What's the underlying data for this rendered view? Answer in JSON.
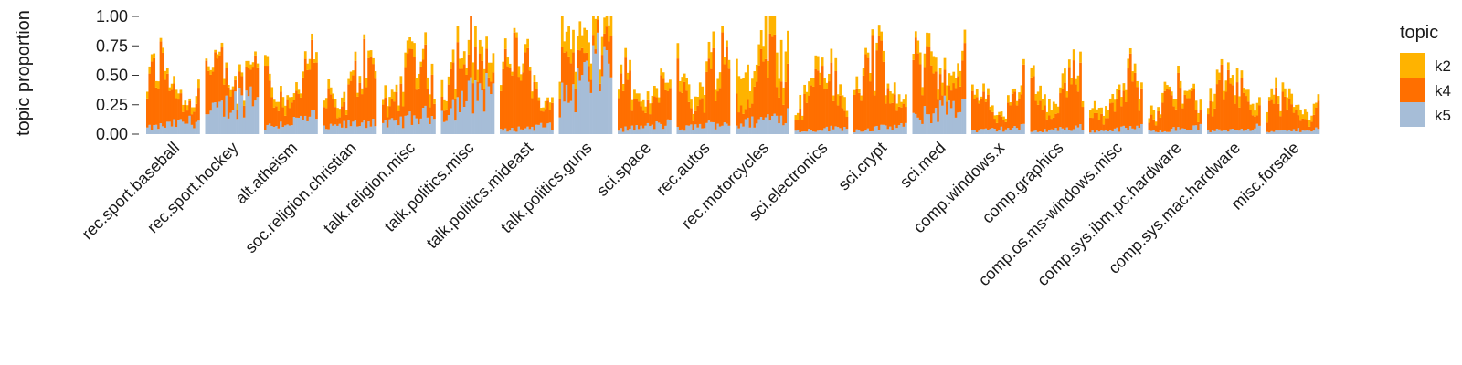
{
  "chart_data": {
    "type": "area",
    "description_kind": "stacked topic proportions per document, grouped by newsgroup",
    "ylabel": "topic proportion",
    "xlabel": "",
    "ylim": [
      0,
      1
    ],
    "yticks": [
      "0.00",
      "0.25",
      "0.50",
      "0.75",
      "1.00"
    ],
    "grid": false,
    "legend": {
      "title": "topic",
      "placement": "right",
      "entries": [
        {
          "name": "k2",
          "color": "#FFB300"
        },
        {
          "name": "k4",
          "color": "#FF6F00"
        },
        {
          "name": "k5",
          "color": "#A6BDD7"
        }
      ]
    },
    "series_order_bottom_to_top": [
      "k5",
      "k4",
      "k2"
    ],
    "groups": [
      {
        "name": "rec.sport.baseball",
        "k5": 0.08,
        "k4": 0.42,
        "k2": 0.05
      },
      {
        "name": "rec.sport.hockey",
        "k5": 0.25,
        "k4": 0.33,
        "k2": 0.04
      },
      {
        "name": "alt.atheism",
        "k5": 0.1,
        "k4": 0.45,
        "k2": 0.06
      },
      {
        "name": "soc.religion.christian",
        "k5": 0.08,
        "k4": 0.4,
        "k2": 0.06
      },
      {
        "name": "talk.religion.misc",
        "k5": 0.12,
        "k4": 0.42,
        "k2": 0.08
      },
      {
        "name": "talk.politics.misc",
        "k5": 0.3,
        "k4": 0.35,
        "k2": 0.12
      },
      {
        "name": "talk.politics.mideast",
        "k5": 0.05,
        "k4": 0.52,
        "k2": 0.06
      },
      {
        "name": "talk.politics.guns",
        "k5": 0.45,
        "k4": 0.25,
        "k2": 0.18
      },
      {
        "name": "sci.space",
        "k5": 0.06,
        "k4": 0.4,
        "k2": 0.06
      },
      {
        "name": "rec.autos",
        "k5": 0.07,
        "k4": 0.48,
        "k2": 0.1
      },
      {
        "name": "rec.motorcycles",
        "k5": 0.12,
        "k4": 0.45,
        "k2": 0.28
      },
      {
        "name": "sci.electronics",
        "k5": 0.04,
        "k4": 0.42,
        "k2": 0.08
      },
      {
        "name": "sci.crypt",
        "k5": 0.05,
        "k4": 0.48,
        "k2": 0.07
      },
      {
        "name": "sci.med",
        "k5": 0.2,
        "k4": 0.42,
        "k2": 0.1
      },
      {
        "name": "comp.windows.x",
        "k5": 0.04,
        "k4": 0.3,
        "k2": 0.05
      },
      {
        "name": "comp.graphics",
        "k5": 0.04,
        "k4": 0.35,
        "k2": 0.09
      },
      {
        "name": "comp.os.ms-windows.misc",
        "k5": 0.04,
        "k4": 0.35,
        "k2": 0.07
      },
      {
        "name": "comp.sys.ibm.pc.hardware",
        "k5": 0.04,
        "k4": 0.32,
        "k2": 0.06
      },
      {
        "name": "comp.sys.mac.hardware",
        "k5": 0.04,
        "k4": 0.36,
        "k2": 0.08
      },
      {
        "name": "misc.forsale",
        "k5": 0.03,
        "k4": 0.22,
        "k2": 0.07
      }
    ]
  }
}
